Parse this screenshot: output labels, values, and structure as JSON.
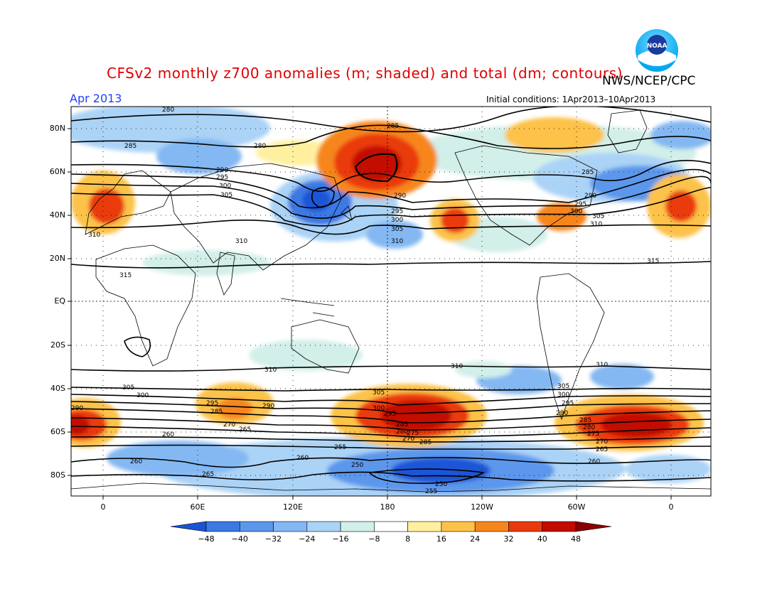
{
  "title": "CFSv2 monthly z700 anomalies (m; shaded) and total (dm; contours)",
  "agency": "NWS/NCEP/CPC",
  "period": "Apr 2013",
  "initial_conditions": "Initial conditions: 1Apr2013–10Apr2013",
  "logo": {
    "text": "NOAA",
    "icon": "noaa-logo"
  },
  "lat_labels": [
    "80N",
    "60N",
    "40N",
    "20N",
    "EQ",
    "20S",
    "40S",
    "60S",
    "80S"
  ],
  "lon_labels": [
    "0",
    "60E",
    "120E",
    "180",
    "120W",
    "60W",
    "0"
  ],
  "colorbar": {
    "labels": [
      "−48",
      "−40",
      "−32",
      "−24",
      "−16",
      "−8",
      "8",
      "16",
      "24",
      "32",
      "40",
      "48"
    ],
    "colors": [
      "#1a54d6",
      "#3c79e4",
      "#5b97ec",
      "#84b8f2",
      "#abd3f6",
      "#d2efe9",
      "#ffffff",
      "#fff0a0",
      "#fcc24a",
      "#f6861c",
      "#ea3a0c",
      "#c20a00",
      "#8c0000"
    ]
  },
  "contour_labels": {
    "top_280": "280",
    "arc_285": "285",
    "c_285a": "285",
    "c_280b": "280",
    "w290": "290",
    "w295": "295",
    "w300": "300",
    "w305": "305",
    "w310a": "310",
    "w310b": "310",
    "w315": "315",
    "p295": "295",
    "p300": "300",
    "p305": "305",
    "p310": "310",
    "p290": "290",
    "ak285": "285",
    "e290": "290",
    "e295": "295",
    "e300": "300",
    "e305": "305",
    "e310": "310",
    "e315": "315",
    "s310a": "310",
    "s310b": "310",
    "s310c": "310",
    "s305a": "305",
    "s300a": "300",
    "s295a": "295",
    "s285a": "285",
    "s270a": "270",
    "s290a": "290",
    "s265a": "265",
    "s306": "305",
    "s300b": "300",
    "s295b": "295",
    "s285b": "285",
    "s280b": "280",
    "s275b": "275",
    "s270b": "270",
    "s285c": "285",
    "s305c": "305",
    "s300c": "300",
    "s295c": "295",
    "s290c": "290",
    "s285d": "285",
    "s280d": "280",
    "s275d": "275",
    "s270d": "270",
    "s265d": "265",
    "s290e": "290",
    "s260a": "260",
    "s260b": "260",
    "s255a": "255",
    "s260c": "260",
    "s250a": "250",
    "s265e": "265",
    "s260d": "260",
    "s250b": "250",
    "s255b": "255"
  }
}
